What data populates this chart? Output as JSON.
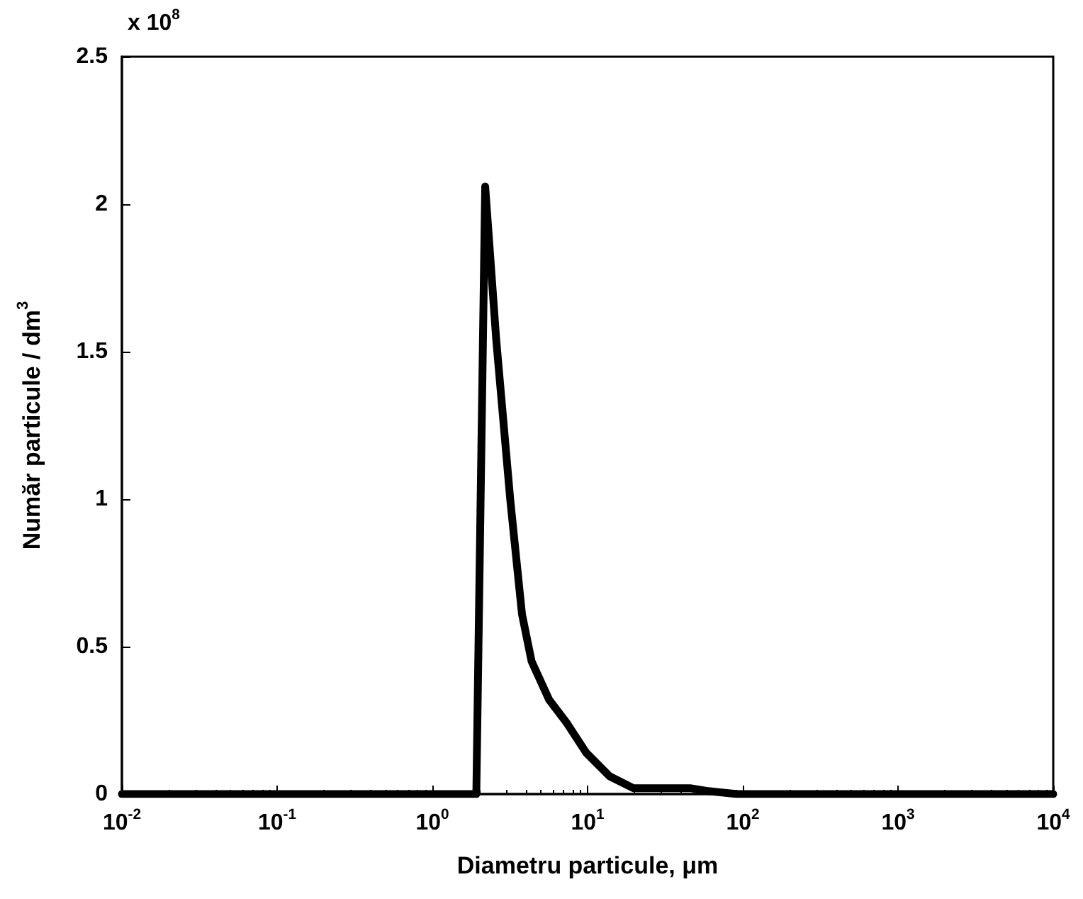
{
  "chart_data": {
    "type": "line",
    "xlabel": "Diametru particule, μm",
    "ylabel": "Număr particule / dm$^{3}$",
    "annotations": [
      "x 10$^{8}$"
    ],
    "log": "x",
    "x": [
      0.01,
      1.92,
      2.19,
      2.58,
      3.18,
      3.78,
      4.36,
      5.65,
      7.37,
      9.8,
      13.9,
      19.7,
      45.7,
      60,
      92,
      10000
    ],
    "series": [
      {
        "color": "#000000",
        "values": [
          0,
          0,
          2.06,
          1.54,
          0.995,
          0.61,
          0.45,
          0.32,
          0.24,
          0.14,
          0.06,
          0.02,
          0.02,
          0.01,
          0,
          0
        ]
      }
    ],
    "xlim": [
      0.01,
      10000
    ],
    "xticks": [
      {
        "value": 0.01,
        "label": "10$^{-2}$"
      },
      {
        "value": 0.1,
        "label": "10$^{-1}$"
      },
      {
        "value": 1,
        "label": "10$^{0}$"
      },
      {
        "value": 10,
        "label": "10$^{1}$"
      },
      {
        "value": 100,
        "label": "10$^{2}$"
      },
      {
        "value": 1000,
        "label": "10$^{3}$"
      },
      {
        "value": 10000,
        "label": "10$^{4}$"
      }
    ],
    "ylim": [
      0,
      2.5
    ],
    "yticks": [
      0,
      0.5,
      1,
      1.5,
      2,
      2.5
    ],
    "grid": false,
    "marker": "none",
    "line_style": "solid"
  }
}
